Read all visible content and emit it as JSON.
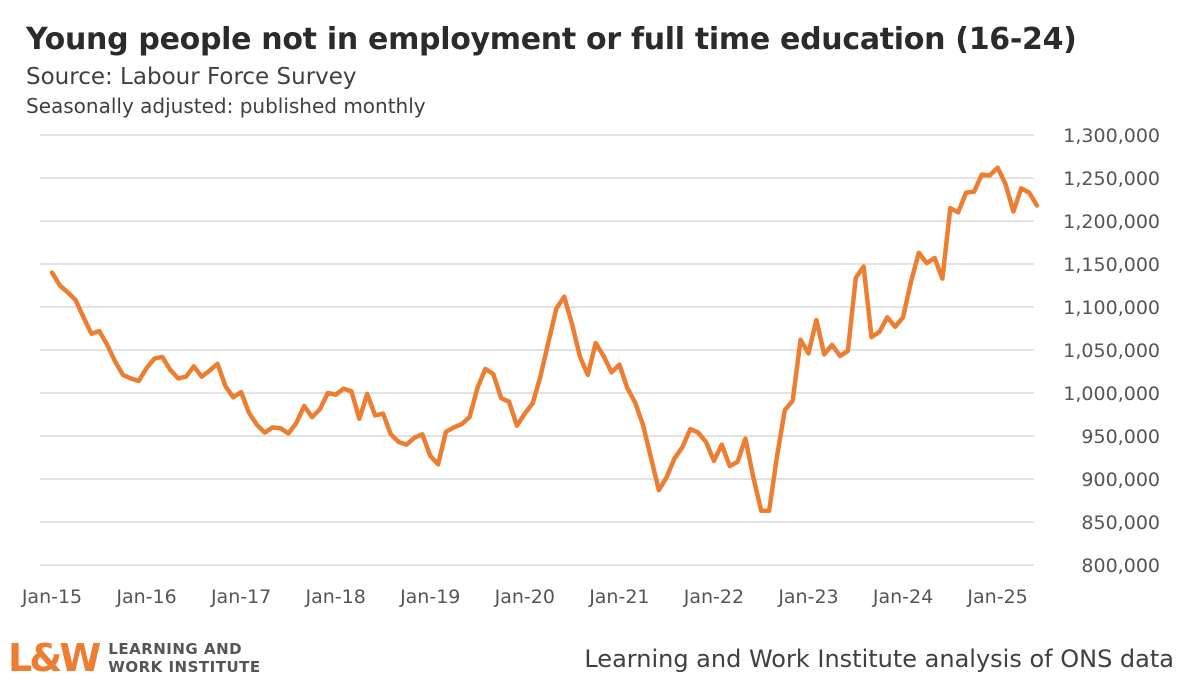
{
  "header": {
    "title": "Young people not in employment or full time education (16-24)",
    "subtitle": "Source: Labour Force Survey",
    "subtitle2": "Seasonally adjusted: published monthly"
  },
  "footer": {
    "credit": "Learning and Work Institute analysis of ONS data",
    "logo_mark": "L&W",
    "logo_line1": "LEARNING AND",
    "logo_line2": "WORK INSTITUTE"
  },
  "colors": {
    "line": "#ed7d31",
    "grid": "#d9d9d9",
    "logo_accent": "#ed7d31"
  },
  "chart_data": {
    "type": "line",
    "title": "Young people not in employment or full time education (16-24)",
    "xlabel": "",
    "ylabel": "",
    "ylim": [
      800000,
      1300000
    ],
    "yticks": [
      800000,
      850000,
      900000,
      950000,
      1000000,
      1050000,
      1100000,
      1150000,
      1200000,
      1250000,
      1300000
    ],
    "ytick_labels": [
      "800,000",
      "850,000",
      "900,000",
      "950,000",
      "1,000,000",
      "1,050,000",
      "1,100,000",
      "1,150,000",
      "1,200,000",
      "1,250,000",
      "1,300,000"
    ],
    "xtick_labels": [
      "Jan-15",
      "Jan-16",
      "Jan-17",
      "Jan-18",
      "Jan-19",
      "Jan-20",
      "Jan-21",
      "Jan-22",
      "Jan-23",
      "Jan-24",
      "Jan-25"
    ],
    "x_start": "Jan-15",
    "x_end": "Jun-25",
    "grid": true,
    "legend": "none",
    "series": [
      {
        "values": [
          1140000,
          1125000,
          1117000,
          1108000,
          1088000,
          1069000,
          1072000,
          1056000,
          1037000,
          1021000,
          1017000,
          1014000,
          1029000,
          1040000,
          1042000,
          1027000,
          1017000,
          1019000,
          1031000,
          1019000,
          1026000,
          1034000,
          1008000,
          995000,
          1001000,
          977000,
          963000,
          954000,
          960000,
          959000,
          953000,
          965000,
          985000,
          972000,
          981000,
          1000000,
          998000,
          1005000,
          1002000,
          970000,
          999000,
          974000,
          976000,
          952000,
          943000,
          940000,
          948000,
          952000,
          927000,
          917000,
          955000,
          960000,
          964000,
          972000,
          1006000,
          1028000,
          1022000,
          994000,
          990000,
          962000,
          976000,
          988000,
          1020000,
          1059000,
          1098000,
          1112000,
          1080000,
          1042000,
          1021000,
          1058000,
          1043000,
          1024000,
          1033000,
          1006000,
          989000,
          963000,
          925000,
          887000,
          902000,
          924000,
          937000,
          958000,
          954000,
          943000,
          921000,
          940000,
          915000,
          920000,
          947000,
          902000,
          863000,
          863000,
          926000,
          980000,
          991000,
          1062000,
          1046000,
          1085000,
          1045000,
          1056000,
          1043000,
          1049000,
          1134000,
          1147000,
          1065000,
          1071000,
          1088000,
          1077000,
          1088000,
          1129000,
          1163000,
          1151000,
          1157000,
          1133000,
          1215000,
          1210000,
          1233000,
          1234000,
          1254000,
          1253000,
          1262000,
          1243000,
          1211000,
          1238000,
          1233000,
          1218000
        ]
      }
    ]
  }
}
